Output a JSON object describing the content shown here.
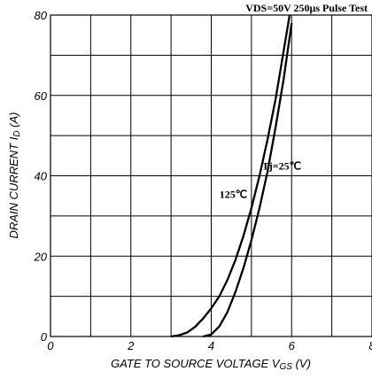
{
  "chart_data": {
    "type": "line",
    "title": "",
    "xlabel": "GATE TO SOURCE VOLTAGE",
    "xlabel_symbol": "V",
    "xlabel_symbol_sub": "GS",
    "xlabel_unit": " (V)",
    "ylabel": "DRAIN CURRENT",
    "ylabel_symbol": "I",
    "ylabel_symbol_sub": "D",
    "ylabel_unit": " (A)",
    "xlim": [
      0,
      8
    ],
    "ylim": [
      0,
      80
    ],
    "x_ticks": [
      0,
      2,
      4,
      6,
      8
    ],
    "y_ticks": [
      0,
      20,
      40,
      60,
      80
    ],
    "grid": true,
    "annotation_top": "VDS=50V  250μs Pulse Test",
    "series": [
      {
        "name": "125℃",
        "x": [
          3.0,
          3.2,
          3.4,
          3.6,
          3.8,
          4.0,
          4.2,
          4.4,
          4.6,
          4.8,
          5.0,
          5.2,
          5.4,
          5.6,
          5.8,
          5.95
        ],
        "y": [
          0.0,
          0.3,
          1.0,
          2.4,
          4.5,
          7.0,
          10.0,
          14.0,
          19.0,
          25.0,
          32.0,
          40.0,
          49.0,
          59.0,
          71.0,
          80.0
        ]
      },
      {
        "name": "Tj=25℃",
        "x": [
          3.8,
          4.0,
          4.2,
          4.4,
          4.6,
          4.8,
          5.0,
          5.2,
          5.4,
          5.6,
          5.8,
          6.0
        ],
        "y": [
          0.0,
          0.5,
          2.5,
          6.0,
          11.0,
          17.0,
          24.0,
          32.0,
          41.0,
          52.0,
          64.0,
          78.0
        ]
      }
    ],
    "series_labels": [
      {
        "text": "125℃",
        "x": 4.55,
        "y": 34.5
      },
      {
        "text": "Tj=25℃",
        "x": 5.75,
        "y": 41.5
      }
    ]
  }
}
